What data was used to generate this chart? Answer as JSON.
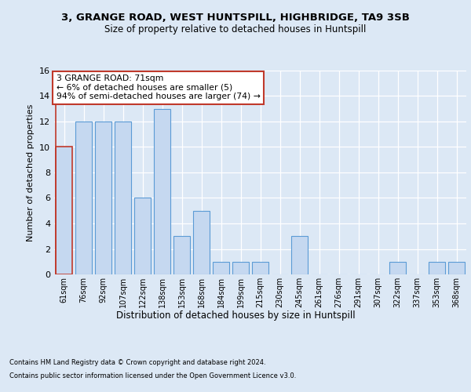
{
  "title1": "3, GRANGE ROAD, WEST HUNTSPILL, HIGHBRIDGE, TA9 3SB",
  "title2": "Size of property relative to detached houses in Huntspill",
  "xlabel": "Distribution of detached houses by size in Huntspill",
  "ylabel": "Number of detached properties",
  "categories": [
    "61sqm",
    "76sqm",
    "92sqm",
    "107sqm",
    "122sqm",
    "138sqm",
    "153sqm",
    "168sqm",
    "184sqm",
    "199sqm",
    "215sqm",
    "230sqm",
    "245sqm",
    "261sqm",
    "276sqm",
    "291sqm",
    "307sqm",
    "322sqm",
    "337sqm",
    "353sqm",
    "368sqm"
  ],
  "values": [
    10,
    12,
    12,
    12,
    6,
    13,
    3,
    5,
    1,
    1,
    1,
    0,
    3,
    0,
    0,
    0,
    0,
    1,
    0,
    1,
    1
  ],
  "bar_color": "#c5d8f0",
  "bar_edge_color": "#5b9bd5",
  "highlight_bar_index": 0,
  "highlight_edge_color": "#c0392b",
  "annotation_text": "3 GRANGE ROAD: 71sqm\n← 6% of detached houses are smaller (5)\n94% of semi-detached houses are larger (74) →",
  "annotation_box_color": "white",
  "annotation_box_edge_color": "#c0392b",
  "ylim": [
    0,
    16
  ],
  "yticks": [
    0,
    2,
    4,
    6,
    8,
    10,
    12,
    14,
    16
  ],
  "footer_line1": "Contains HM Land Registry data © Crown copyright and database right 2024.",
  "footer_line2": "Contains public sector information licensed under the Open Government Licence v3.0.",
  "background_color": "#dce8f5",
  "plot_background_color": "#dce8f5"
}
